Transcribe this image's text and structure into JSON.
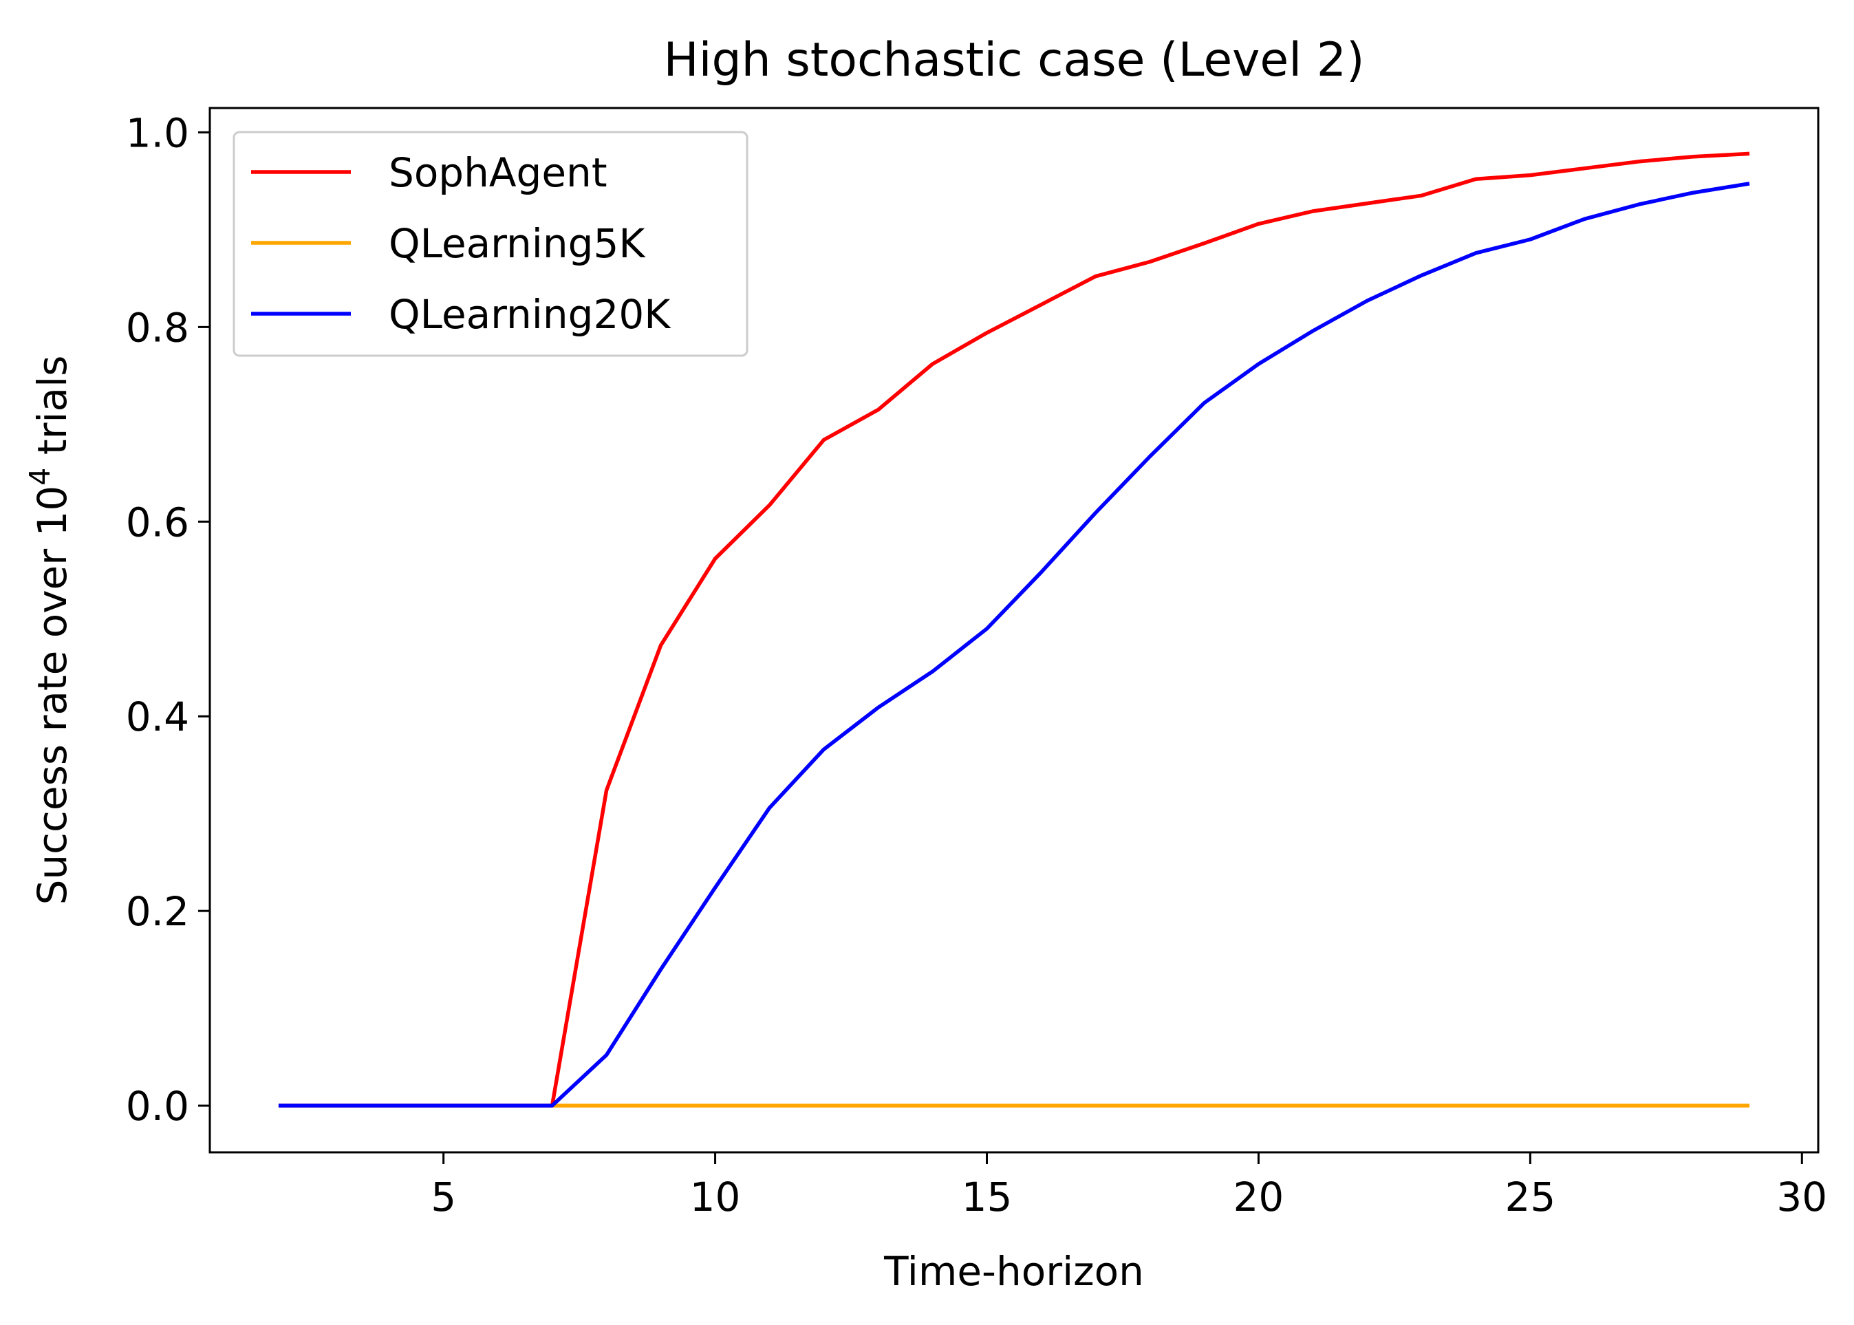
{
  "chart_data": {
    "type": "line",
    "title": "High stochastic case (Level 2)",
    "xlabel": "Time-horizon",
    "ylabel": {
      "prefix": "Success rate over 10",
      "superscript": "4",
      "suffix": " trials"
    },
    "xlim": [
      0.7,
      30.3
    ],
    "ylim": [
      -0.048,
      1.025
    ],
    "xticks": [
      5,
      10,
      15,
      20,
      25,
      30
    ],
    "xtick_labels": [
      "5",
      "10",
      "15",
      "20",
      "25",
      "30"
    ],
    "yticks": [
      0.0,
      0.2,
      0.4,
      0.6,
      0.8,
      1.0
    ],
    "ytick_labels": [
      "0.0",
      "0.2",
      "0.4",
      "0.6",
      "0.8",
      "1.0"
    ],
    "legend_position": "top-left",
    "grid": false,
    "x": [
      2,
      3,
      4,
      5,
      6,
      7,
      8,
      9,
      10,
      11,
      12,
      13,
      14,
      15,
      16,
      17,
      18,
      19,
      20,
      21,
      22,
      23,
      24,
      25,
      26,
      27,
      28,
      29
    ],
    "series": [
      {
        "name": "SophAgent",
        "color": "#ff0000",
        "values": [
          0,
          0,
          0,
          0,
          0,
          0,
          0.324,
          0.473,
          0.562,
          0.617,
          0.684,
          0.715,
          0.762,
          0.794,
          0.823,
          0.852,
          0.867,
          0.886,
          0.906,
          0.919,
          0.927,
          0.935,
          0.952,
          0.956,
          0.963,
          0.97,
          0.975,
          0.978
        ]
      },
      {
        "name": "QLearning5K",
        "color": "#ffa500",
        "values": [
          0,
          0,
          0,
          0,
          0,
          0,
          0,
          0,
          0,
          0,
          0,
          0,
          0,
          0,
          0,
          0,
          0,
          0,
          0,
          0,
          0,
          0,
          0,
          0,
          0,
          0,
          0,
          0
        ]
      },
      {
        "name": "QLearning20K",
        "color": "#0000ff",
        "values": [
          0,
          0,
          0,
          0,
          0,
          0,
          0.052,
          0.14,
          0.224,
          0.306,
          0.366,
          0.409,
          0.446,
          0.49,
          0.548,
          0.609,
          0.667,
          0.722,
          0.762,
          0.796,
          0.827,
          0.853,
          0.876,
          0.89,
          0.911,
          0.926,
          0.938,
          0.947
        ]
      }
    ]
  }
}
